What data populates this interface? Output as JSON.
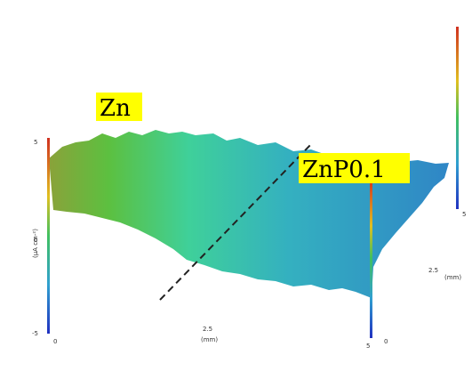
{
  "labels": {
    "left_sample": "Zn",
    "right_sample": "ZnP0.1"
  },
  "axis": {
    "z_label": "(μA cm-²)",
    "z_ticks": [
      "5",
      "0",
      "-5"
    ],
    "x_label": "(mm)",
    "x_ticks": [
      "0",
      "2.5",
      "5"
    ],
    "y_label": "(mm)",
    "y_ticks": [
      "0",
      "2.5",
      "5"
    ]
  }
}
